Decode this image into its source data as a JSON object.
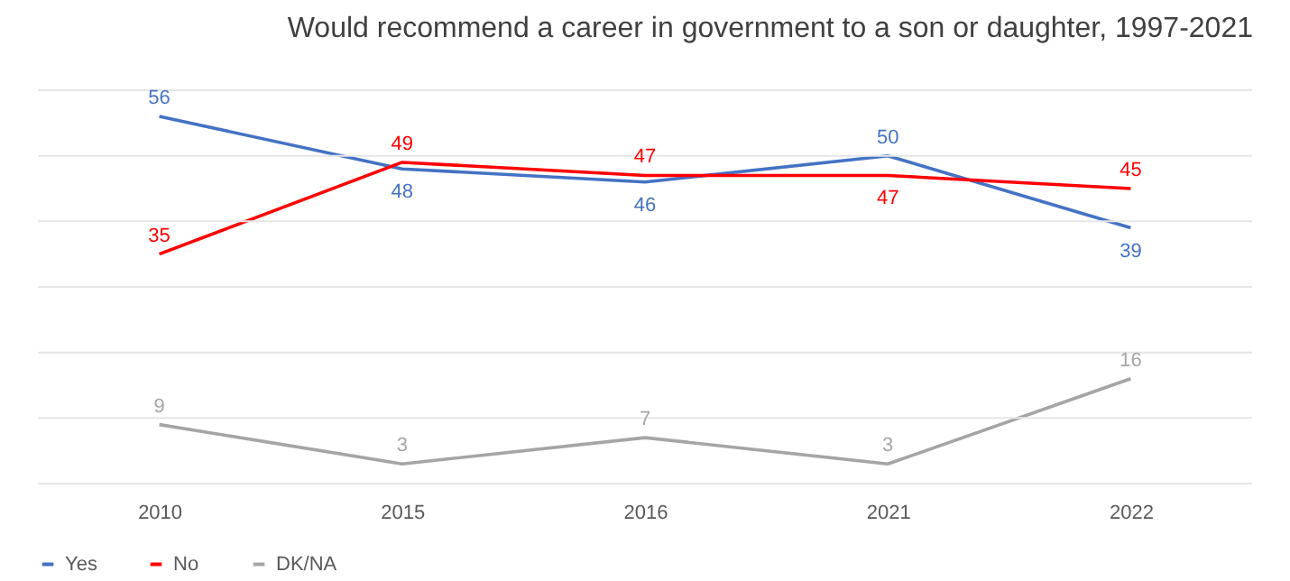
{
  "chart_data": {
    "type": "line",
    "title": "Would recommend a career in government to a son or daughter, 1997-2021",
    "categories": [
      "2010",
      "2015",
      "2016",
      "2021",
      "2022"
    ],
    "series": [
      {
        "name": "Yes",
        "color": "#4472c4",
        "values": [
          56,
          48,
          46,
          50,
          39
        ]
      },
      {
        "name": "No",
        "color": "#ff0000",
        "values": [
          35,
          49,
          47,
          47,
          45
        ]
      },
      {
        "name": "DK/NA",
        "color": "#a5a5a5",
        "values": [
          9,
          3,
          7,
          3,
          16
        ]
      }
    ],
    "ylim": [
      0,
      60
    ],
    "yticks": [
      {
        "value": 0,
        "label": null
      },
      {
        "value": 10,
        "label": null
      },
      {
        "value": 20,
        "label": null
      },
      {
        "value": 30,
        "label": null
      },
      {
        "value": 40,
        "label": null
      },
      {
        "value": 50,
        "label": null
      },
      {
        "value": 60,
        "label": null
      }
    ],
    "tick_labels": "x",
    "grid": "y",
    "legend": "bottom",
    "data_labels": true,
    "marker": "none",
    "line_style": "solid"
  }
}
